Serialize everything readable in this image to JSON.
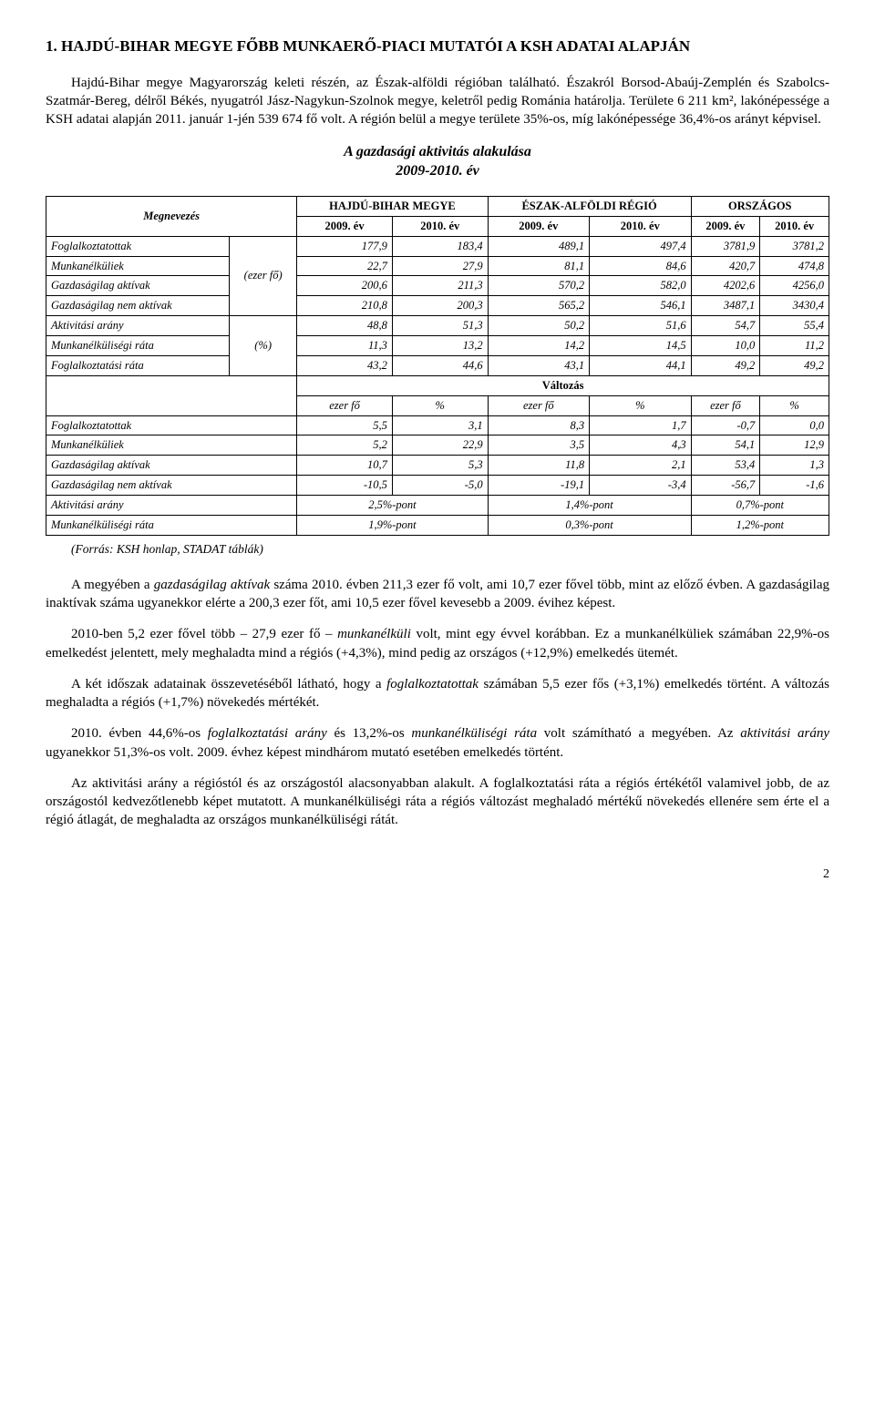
{
  "section_title": "1. HAJDÚ-BIHAR MEGYE FŐBB MUNKAERŐ-PIACI MUTATÓI A KSH ADATAI ALAPJÁN",
  "p1": "Hajdú-Bihar megye Magyarország keleti részén, az Észak-alföldi régióban található. Északról Borsod-Abaúj-Zemplén és Szabolcs-Szatmár-Bereg, délről Békés, nyugatról Jász-Nagykun-Szolnok megye, keletről pedig Románia határolja. Területe 6 211 km², lakónépessége a KSH adatai alapján 2011. január 1-jén 539 674 fő volt. A régión belül a megye területe 35%-os, míg lakónépessége 36,4%-os arányt képvisel.",
  "chart_title_l1": "A gazdasági aktivitás alakulása",
  "chart_title_l2": "2009-2010. év",
  "tbl": {
    "head": {
      "megnev": "Megnevezés",
      "c1": "HAJDÚ-BIHAR MEGYE",
      "c2": "ÉSZAK-ALFÖLDI RÉGIÓ",
      "c3": "ORSZÁGOS",
      "y09": "2009. év",
      "y10": "2010. év"
    },
    "unit_ezer": "(ezer fő)",
    "unit_pct": "(%)",
    "valtozas": "Változás",
    "ezerfo": "ezer fő",
    "pct": "%",
    "rows1": [
      {
        "label": "Foglalkoztatottak",
        "v": [
          "177,9",
          "183,4",
          "489,1",
          "497,4",
          "3781,9",
          "3781,2"
        ]
      },
      {
        "label": "Munkanélküliek",
        "v": [
          "22,7",
          "27,9",
          "81,1",
          "84,6",
          "420,7",
          "474,8"
        ]
      },
      {
        "label": "Gazdaságilag aktívak",
        "v": [
          "200,6",
          "211,3",
          "570,2",
          "582,0",
          "4202,6",
          "4256,0"
        ]
      },
      {
        "label": "Gazdaságilag nem aktívak",
        "v": [
          "210,8",
          "200,3",
          "565,2",
          "546,1",
          "3487,1",
          "3430,4"
        ]
      }
    ],
    "rows2": [
      {
        "label": "Aktivitási arány",
        "v": [
          "48,8",
          "51,3",
          "50,2",
          "51,6",
          "54,7",
          "55,4"
        ]
      },
      {
        "label": "Munkanélküliségi ráta",
        "v": [
          "11,3",
          "13,2",
          "14,2",
          "14,5",
          "10,0",
          "11,2"
        ]
      },
      {
        "label": "Foglalkoztatási ráta",
        "v": [
          "43,2",
          "44,6",
          "43,1",
          "44,1",
          "49,2",
          "49,2"
        ]
      }
    ],
    "rows3": [
      {
        "label": "Foglalkoztatottak",
        "v": [
          "5,5",
          "3,1",
          "8,3",
          "1,7",
          "-0,7",
          "0,0"
        ]
      },
      {
        "label": "Munkanélküliek",
        "v": [
          "5,2",
          "22,9",
          "3,5",
          "4,3",
          "54,1",
          "12,9"
        ]
      },
      {
        "label": "Gazdaságilag aktívak",
        "v": [
          "10,7",
          "5,3",
          "11,8",
          "2,1",
          "53,4",
          "1,3"
        ]
      },
      {
        "label": "Gazdaságilag nem aktívak",
        "v": [
          "-10,5",
          "-5,0",
          "-19,1",
          "-3,4",
          "-56,7",
          "-1,6"
        ]
      }
    ],
    "rows4": [
      {
        "label": "Aktivitási arány",
        "v": [
          "2,5%-pont",
          "1,4%-pont",
          "0,7%-pont"
        ]
      },
      {
        "label": "Munkanélküliségi ráta",
        "v": [
          "1,9%-pont",
          "0,3%-pont",
          "1,2%-pont"
        ]
      }
    ]
  },
  "source": "(Forrás: KSH honlap, STADAT táblák)",
  "p2_a": "A megyében a ",
  "p2_em1": "gazdaságilag aktívak",
  "p2_b": " száma 2010. évben 211,3 ezer fő volt, ami 10,7 ezer fővel több, mint az előző évben. A gazdaságilag inaktívak száma ugyanekkor elérte a 200,3 ezer főt, ami 10,5 ezer fővel kevesebb a 2009. évihez képest.",
  "p3_a": "2010-ben 5,2 ezer fővel több – 27,9 ezer fő – ",
  "p3_em1": "munkanélküli",
  "p3_b": " volt, mint egy évvel korábban. Ez a munkanélküliek számában 22,9%-os emelkedést jelentett, mely meghaladta mind a régiós (+4,3%), mind pedig az országos (+12,9%) emelkedés ütemét.",
  "p4_a": "A két időszak adatainak összevetéséből látható, hogy a ",
  "p4_em1": "foglalkoztatottak",
  "p4_b": " számában 5,5 ezer fős (+3,1%) emelkedés történt. A változás meghaladta a régiós (+1,7%) növekedés mértékét.",
  "p5_a": "2010. évben 44,6%-os ",
  "p5_em1": "foglalkoztatási arány",
  "p5_b": " és 13,2%-os ",
  "p5_em2": "munkanélküliségi ráta",
  "p5_c": " volt számítható a megyében. Az ",
  "p5_em3": "aktivitási arány",
  "p5_d": " ugyanekkor 51,3%-os volt. 2009. évhez képest mindhárom mutató esetében emelkedés történt.",
  "p6": "Az aktivitási arány a régióstól és az országostól alacsonyabban alakult. A foglalkoztatási ráta a régiós értékétől valamivel jobb, de az országostól kedvezőtlenebb képet mutatott. A munkanélküliségi ráta a régiós változást meghaladó mértékű növekedés ellenére sem érte el a régió átlagát, de meghaladta az országos munkanélküliségi rátát.",
  "page_number": "2"
}
